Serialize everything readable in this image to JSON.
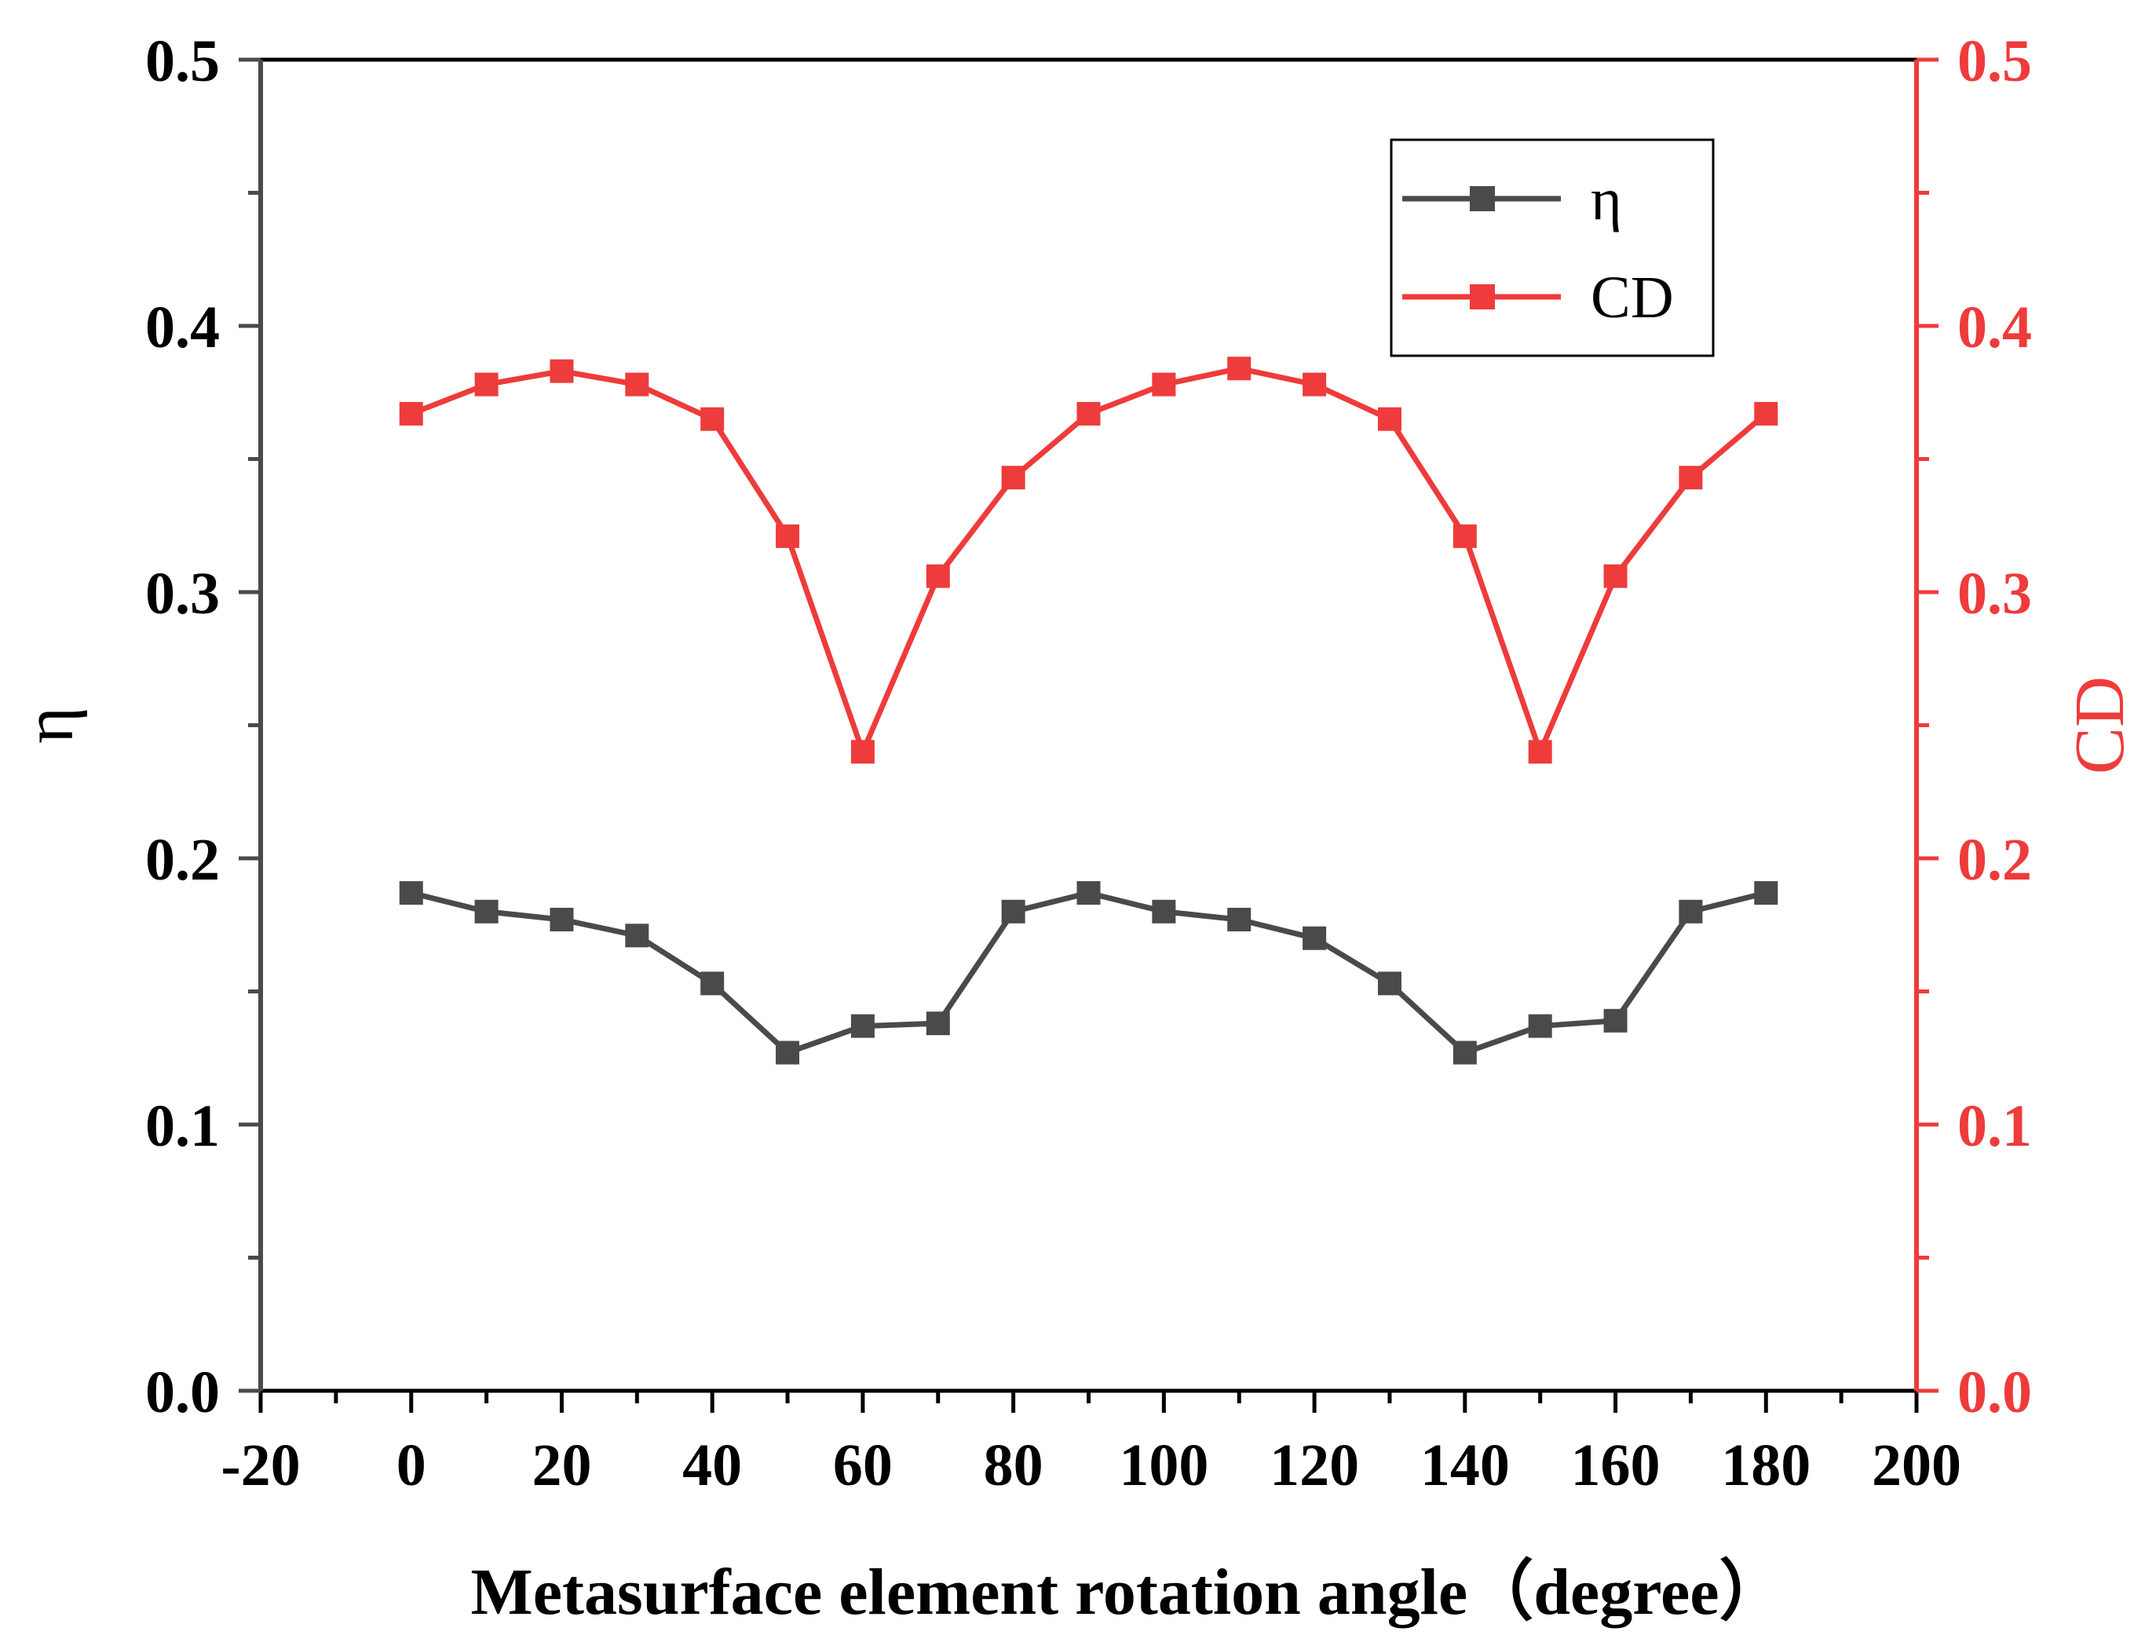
{
  "chart_data": {
    "type": "line",
    "title": "",
    "xlabel": "Metasurface element rotation angle（degree）",
    "ylabel_left": "η",
    "ylabel_right": "CD",
    "xlim": [
      -20,
      200
    ],
    "ylim_left": [
      0.0,
      0.5
    ],
    "ylim_right": [
      0.0,
      0.5
    ],
    "x_ticks": [
      "-20",
      "0",
      "20",
      "40",
      "60",
      "80",
      "100",
      "120",
      "140",
      "160",
      "180",
      "200"
    ],
    "y_ticks_left": [
      "0.0",
      "0.1",
      "0.2",
      "0.3",
      "0.4",
      "0.5"
    ],
    "y_ticks_right": [
      "0.0",
      "0.1",
      "0.2",
      "0.3",
      "0.4",
      "0.5"
    ],
    "x": [
      0,
      10,
      20,
      30,
      40,
      50,
      60,
      70,
      80,
      90,
      100,
      110,
      120,
      130,
      140,
      150,
      160,
      170,
      180
    ],
    "series": [
      {
        "name": "η",
        "axis": "left",
        "color": "#4a4a4a",
        "marker": "square",
        "values": [
          0.187,
          0.18,
          0.177,
          0.171,
          0.153,
          0.127,
          0.137,
          0.138,
          0.18,
          0.187,
          0.18,
          0.177,
          0.17,
          0.153,
          0.127,
          0.137,
          0.139,
          0.18,
          0.187
        ]
      },
      {
        "name": "CD",
        "axis": "right",
        "color": "#ee3b3b",
        "marker": "square",
        "values": [
          0.367,
          0.378,
          0.383,
          0.378,
          0.365,
          0.321,
          0.24,
          0.306,
          0.343,
          0.367,
          0.378,
          0.384,
          0.378,
          0.365,
          0.321,
          0.24,
          0.306,
          0.343,
          0.367
        ]
      }
    ],
    "legend": {
      "position": "top-right",
      "entries": [
        "η",
        "CD"
      ]
    },
    "grid": false,
    "left_axis_color": "#4a4a4a",
    "right_axis_color": "#ee3b3b"
  }
}
